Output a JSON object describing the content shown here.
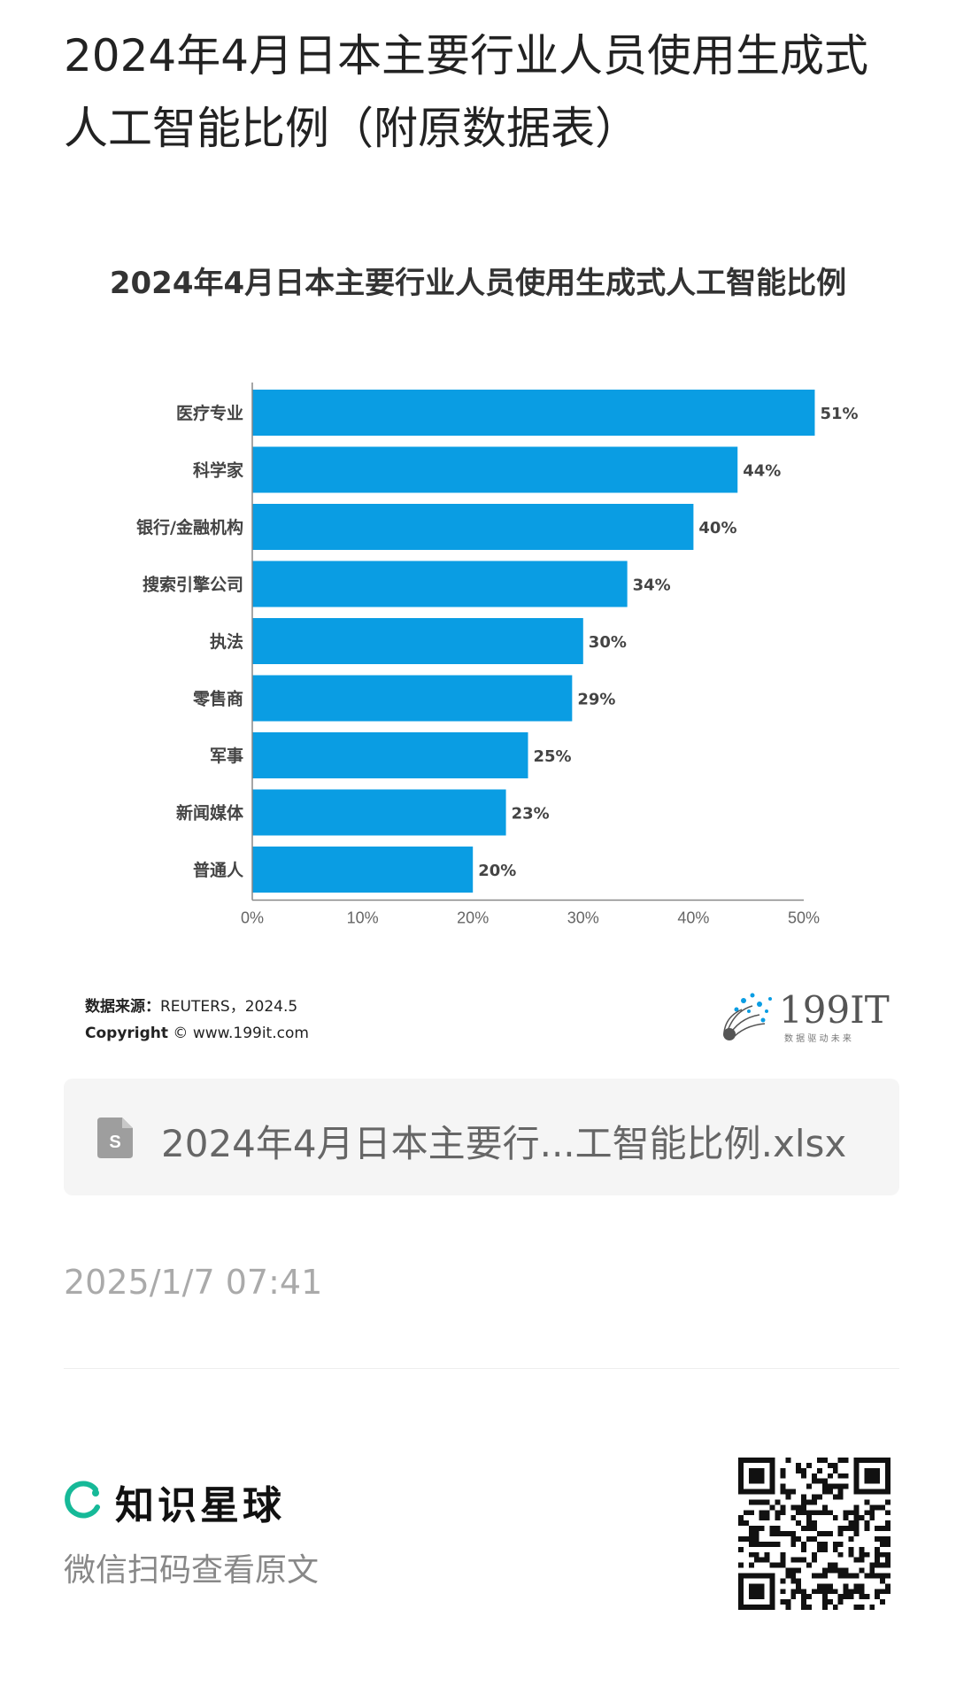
{
  "post": {
    "title": "2024年4月日本主要行业人员使用生成式人工智能比例（附原数据表）"
  },
  "chart_data": {
    "type": "bar",
    "orientation": "horizontal",
    "title": "2024年4月日本主要行业人员使用生成式人工智能比例",
    "categories": [
      "医疗专业",
      "科学家",
      "银行/金融机构",
      "搜索引擎公司",
      "执法",
      "零售商",
      "军事",
      "新闻媒体",
      "普通人"
    ],
    "values": [
      51,
      44,
      40,
      34,
      30,
      29,
      25,
      23,
      20
    ],
    "value_labels": [
      "51%",
      "44%",
      "40%",
      "34%",
      "30%",
      "29%",
      "25%",
      "23%",
      "20%"
    ],
    "x_ticks": [
      "0%",
      "10%",
      "20%",
      "30%",
      "40%",
      "50%"
    ],
    "xlim": [
      0,
      51
    ],
    "bar_color": "#0a9de3",
    "grid": false
  },
  "source": {
    "label": "数据来源：",
    "value": "REUTERS，2024.5",
    "copyright_label": "Copyright",
    "copyright_value": "© www.199it.com"
  },
  "watermark": {
    "logo_text": "199IT",
    "tagline": "数 据 驱 动 未 来"
  },
  "attachment": {
    "file_name": "2024年4月日本主要行...工智能比例.xlsx",
    "icon": "spreadsheet-file-icon"
  },
  "timestamp": "2025/1/7 07:41",
  "footer": {
    "brand": "知识星球",
    "cta": "微信扫码查看原文",
    "brand_color": "#16b998"
  }
}
